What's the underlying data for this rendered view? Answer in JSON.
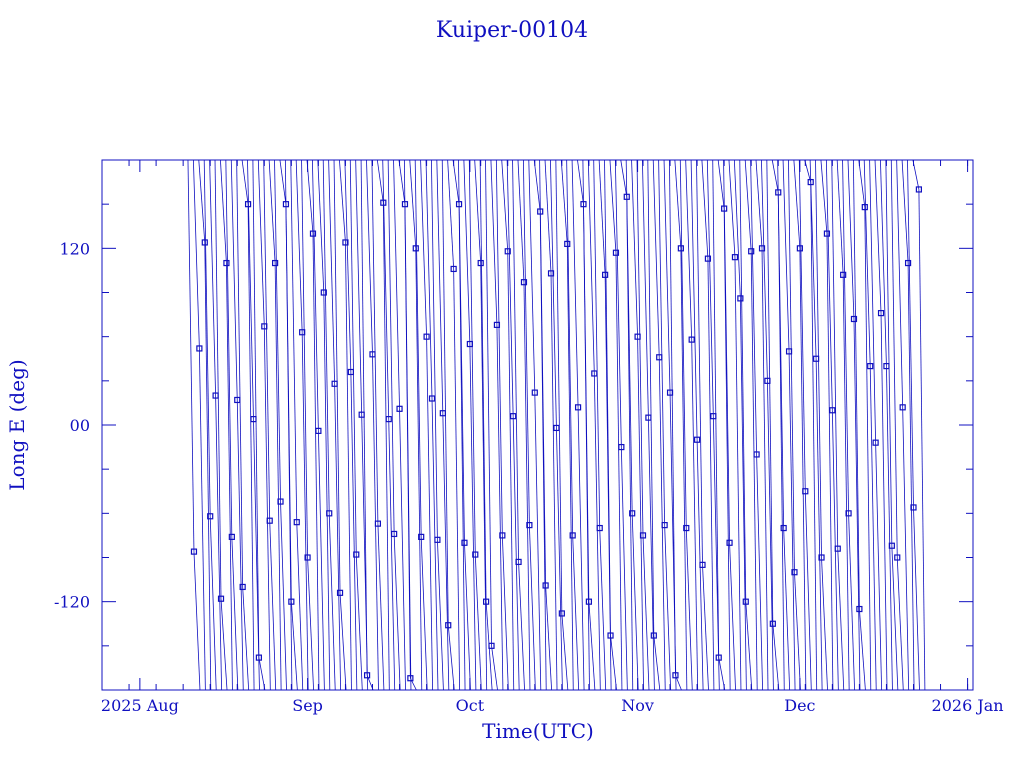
{
  "chart_data": {
    "type": "scatter",
    "title": "Kuiper-00104",
    "xlabel": "Time(UTC)",
    "ylabel": "Long E (deg)",
    "x_unit": "date (UTC)",
    "xlim": [
      "2025-07-25",
      "2026-01-02"
    ],
    "ylim": [
      -180,
      180
    ],
    "x_tick_labels": [
      "2025 Aug",
      "Sep",
      "Oct",
      "Nov",
      "Dec",
      "2026 Jan"
    ],
    "x_tick_dates": [
      "2025-08-01",
      "2025-09-01",
      "2025-10-01",
      "2025-11-01",
      "2025-12-01",
      "2026-01-01"
    ],
    "y_ticks": [
      -120,
      0,
      120
    ],
    "y_tick_labels": [
      "-120",
      "00",
      "120"
    ],
    "grid": false,
    "legend": "none",
    "line_style": "thin connected wrapping track with square markers",
    "color": "#1010c0",
    "series": [
      {
        "points": [
          {
            "x": "2025-08-11",
            "y": -86
          },
          {
            "x": "2025-08-12",
            "y": 52
          },
          {
            "x": "2025-08-13",
            "y": 124
          },
          {
            "x": "2025-08-14",
            "y": -62
          },
          {
            "x": "2025-08-15",
            "y": 20
          },
          {
            "x": "2025-08-16",
            "y": -118
          },
          {
            "x": "2025-08-17",
            "y": 110
          },
          {
            "x": "2025-08-18",
            "y": -76
          },
          {
            "x": "2025-08-19",
            "y": 17
          },
          {
            "x": "2025-08-20",
            "y": -110
          },
          {
            "x": "2025-08-21",
            "y": 150
          },
          {
            "x": "2025-08-22",
            "y": 4
          },
          {
            "x": "2025-08-23",
            "y": -158
          },
          {
            "x": "2025-08-24",
            "y": 67
          },
          {
            "x": "2025-08-25",
            "y": -65
          },
          {
            "x": "2025-08-26",
            "y": 110
          },
          {
            "x": "2025-08-27",
            "y": -52
          },
          {
            "x": "2025-08-28",
            "y": 150
          },
          {
            "x": "2025-08-29",
            "y": -120
          },
          {
            "x": "2025-08-30",
            "y": -66
          },
          {
            "x": "2025-08-31",
            "y": 63
          },
          {
            "x": "2025-09-01",
            "y": -90
          },
          {
            "x": "2025-09-02",
            "y": 130
          },
          {
            "x": "2025-09-03",
            "y": -4
          },
          {
            "x": "2025-09-04",
            "y": 90
          },
          {
            "x": "2025-09-05",
            "y": -60
          },
          {
            "x": "2025-09-06",
            "y": 28
          },
          {
            "x": "2025-09-07",
            "y": -114
          },
          {
            "x": "2025-09-08",
            "y": 124
          },
          {
            "x": "2025-09-09",
            "y": 36
          },
          {
            "x": "2025-09-10",
            "y": -88
          },
          {
            "x": "2025-09-11",
            "y": 7
          },
          {
            "x": "2025-09-12",
            "y": -170
          },
          {
            "x": "2025-09-13",
            "y": 48
          },
          {
            "x": "2025-09-14",
            "y": -67
          },
          {
            "x": "2025-09-15",
            "y": 151
          },
          {
            "x": "2025-09-16",
            "y": 4
          },
          {
            "x": "2025-09-17",
            "y": -74
          },
          {
            "x": "2025-09-18",
            "y": 11
          },
          {
            "x": "2025-09-19",
            "y": 150
          },
          {
            "x": "2025-09-20",
            "y": -172
          },
          {
            "x": "2025-09-21",
            "y": 120
          },
          {
            "x": "2025-09-22",
            "y": -76
          },
          {
            "x": "2025-09-23",
            "y": 60
          },
          {
            "x": "2025-09-24",
            "y": 18
          },
          {
            "x": "2025-09-25",
            "y": -78
          },
          {
            "x": "2025-09-26",
            "y": 8
          },
          {
            "x": "2025-09-27",
            "y": -136
          },
          {
            "x": "2025-09-28",
            "y": 106
          },
          {
            "x": "2025-09-29",
            "y": 150
          },
          {
            "x": "2025-09-30",
            "y": -80
          },
          {
            "x": "2025-10-01",
            "y": 55
          },
          {
            "x": "2025-10-02",
            "y": -88
          },
          {
            "x": "2025-10-03",
            "y": 110
          },
          {
            "x": "2025-10-04",
            "y": -120
          },
          {
            "x": "2025-10-05",
            "y": -150
          },
          {
            "x": "2025-10-06",
            "y": 68
          },
          {
            "x": "2025-10-07",
            "y": -75
          },
          {
            "x": "2025-10-08",
            "y": 118
          },
          {
            "x": "2025-10-09",
            "y": 6
          },
          {
            "x": "2025-10-10",
            "y": -93
          },
          {
            "x": "2025-10-11",
            "y": 97
          },
          {
            "x": "2025-10-12",
            "y": -68
          },
          {
            "x": "2025-10-13",
            "y": 22
          },
          {
            "x": "2025-10-14",
            "y": 145
          },
          {
            "x": "2025-10-15",
            "y": -109
          },
          {
            "x": "2025-10-16",
            "y": 103
          },
          {
            "x": "2025-10-17",
            "y": -2
          },
          {
            "x": "2025-10-18",
            "y": -128
          },
          {
            "x": "2025-10-19",
            "y": 123
          },
          {
            "x": "2025-10-20",
            "y": -75
          },
          {
            "x": "2025-10-21",
            "y": 12
          },
          {
            "x": "2025-10-22",
            "y": 150
          },
          {
            "x": "2025-10-23",
            "y": -120
          },
          {
            "x": "2025-10-24",
            "y": 35
          },
          {
            "x": "2025-10-25",
            "y": -70
          },
          {
            "x": "2025-10-26",
            "y": 102
          },
          {
            "x": "2025-10-27",
            "y": -143
          },
          {
            "x": "2025-10-28",
            "y": 117
          },
          {
            "x": "2025-10-29",
            "y": -15
          },
          {
            "x": "2025-10-30",
            "y": 155
          },
          {
            "x": "2025-10-31",
            "y": -60
          },
          {
            "x": "2025-11-01",
            "y": 60
          },
          {
            "x": "2025-11-02",
            "y": -75
          },
          {
            "x": "2025-11-03",
            "y": 5
          },
          {
            "x": "2025-11-04",
            "y": -143
          },
          {
            "x": "2025-11-05",
            "y": 46
          },
          {
            "x": "2025-11-06",
            "y": -68
          },
          {
            "x": "2025-11-07",
            "y": 22
          },
          {
            "x": "2025-11-08",
            "y": -170
          },
          {
            "x": "2025-11-09",
            "y": 120
          },
          {
            "x": "2025-11-10",
            "y": -70
          },
          {
            "x": "2025-11-11",
            "y": 58
          },
          {
            "x": "2025-11-12",
            "y": -10
          },
          {
            "x": "2025-11-13",
            "y": -95
          },
          {
            "x": "2025-11-14",
            "y": 113
          },
          {
            "x": "2025-11-15",
            "y": 6
          },
          {
            "x": "2025-11-16",
            "y": -158
          },
          {
            "x": "2025-11-17",
            "y": 147
          },
          {
            "x": "2025-11-18",
            "y": -80
          },
          {
            "x": "2025-11-19",
            "y": 114
          },
          {
            "x": "2025-11-20",
            "y": 86
          },
          {
            "x": "2025-11-21",
            "y": -120
          },
          {
            "x": "2025-11-22",
            "y": 118
          },
          {
            "x": "2025-11-23",
            "y": -20
          },
          {
            "x": "2025-11-24",
            "y": 120
          },
          {
            "x": "2025-11-25",
            "y": 30
          },
          {
            "x": "2025-11-26",
            "y": -135
          },
          {
            "x": "2025-11-27",
            "y": 158
          },
          {
            "x": "2025-11-28",
            "y": -70
          },
          {
            "x": "2025-11-29",
            "y": 50
          },
          {
            "x": "2025-11-30",
            "y": -100
          },
          {
            "x": "2025-12-01",
            "y": 120
          },
          {
            "x": "2025-12-02",
            "y": -45
          },
          {
            "x": "2025-12-03",
            "y": 165
          },
          {
            "x": "2025-12-04",
            "y": 45
          },
          {
            "x": "2025-12-05",
            "y": -90
          },
          {
            "x": "2025-12-06",
            "y": 130
          },
          {
            "x": "2025-12-07",
            "y": 10
          },
          {
            "x": "2025-12-08",
            "y": -84
          },
          {
            "x": "2025-12-09",
            "y": 102
          },
          {
            "x": "2025-12-10",
            "y": -60
          },
          {
            "x": "2025-12-11",
            "y": 72
          },
          {
            "x": "2025-12-12",
            "y": -125
          },
          {
            "x": "2025-12-13",
            "y": 148
          },
          {
            "x": "2025-12-14",
            "y": 40
          },
          {
            "x": "2025-12-15",
            "y": -12
          },
          {
            "x": "2025-12-16",
            "y": 76
          },
          {
            "x": "2025-12-17",
            "y": 40
          },
          {
            "x": "2025-12-18",
            "y": -82
          },
          {
            "x": "2025-12-19",
            "y": -90
          },
          {
            "x": "2025-12-20",
            "y": 12
          },
          {
            "x": "2025-12-21",
            "y": 110
          },
          {
            "x": "2025-12-22",
            "y": -56
          },
          {
            "x": "2025-12-23",
            "y": 160
          }
        ]
      }
    ]
  }
}
